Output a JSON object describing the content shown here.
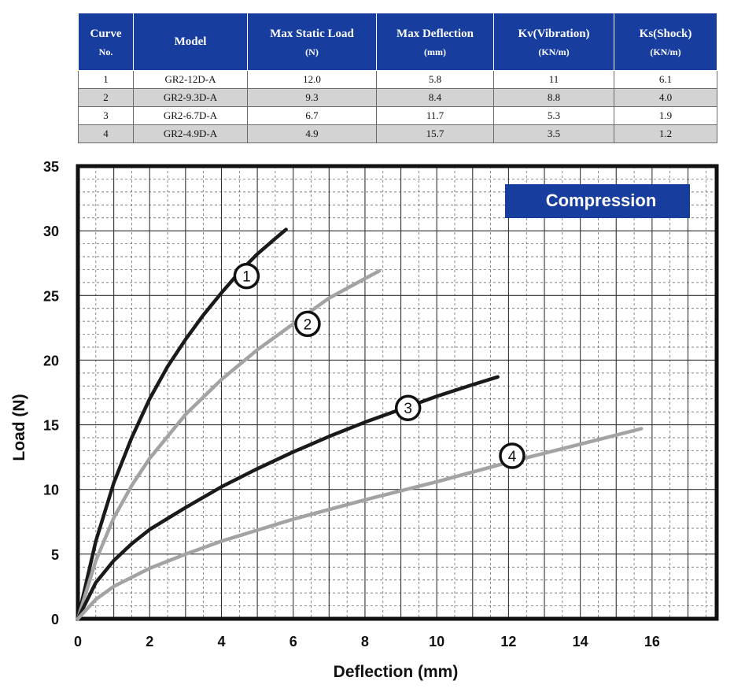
{
  "table": {
    "headers": [
      {
        "main": "Curve",
        "sub": "No."
      },
      {
        "main": "Model",
        "sub": ""
      },
      {
        "main": "Max Static Load",
        "sub": "(N)"
      },
      {
        "main": "Max Deflection",
        "sub": "(mm)"
      },
      {
        "main": "Kv(Vibration)",
        "sub": "(KN/m)"
      },
      {
        "main": "Ks(Shock)",
        "sub": "(KN/m)"
      }
    ],
    "rows": [
      [
        "1",
        "GR2-12D-A",
        "12.0",
        "5.8",
        "11",
        "6.1"
      ],
      [
        "2",
        "GR2-9.3D-A",
        "9.3",
        "8.4",
        "8.8",
        "4.0"
      ],
      [
        "3",
        "GR2-6.7D-A",
        "6.7",
        "11.7",
        "5.3",
        "1.9"
      ],
      [
        "4",
        "GR2-4.9D-A",
        "4.9",
        "15.7",
        "3.5",
        "1.2"
      ]
    ]
  },
  "chart_data": {
    "type": "line",
    "title": "",
    "label_box": "Compression",
    "xlabel": "Deflection (mm)",
    "ylabel": "Load (N)",
    "xlim": [
      0,
      17.8
    ],
    "ylim": [
      0,
      35
    ],
    "xticks": [
      0,
      2,
      4,
      6,
      8,
      10,
      12,
      14,
      16
    ],
    "yticks": [
      0,
      5,
      10,
      15,
      20,
      25,
      30,
      35
    ],
    "grid": true,
    "series": [
      {
        "name": "1",
        "color": "#1a1a1a",
        "marker": {
          "x": 4.7,
          "y": 26.5
        },
        "points": [
          [
            0,
            0
          ],
          [
            0.5,
            6
          ],
          [
            1,
            10.5
          ],
          [
            1.5,
            14
          ],
          [
            2,
            17
          ],
          [
            2.5,
            19.5
          ],
          [
            3,
            21.6
          ],
          [
            3.5,
            23.5
          ],
          [
            4,
            25.2
          ],
          [
            4.5,
            26.8
          ],
          [
            5,
            28.2
          ],
          [
            5.5,
            29.4
          ],
          [
            5.8,
            30.1
          ]
        ]
      },
      {
        "name": "2",
        "color": "#a3a3a3",
        "marker": {
          "x": 6.4,
          "y": 22.8
        },
        "points": [
          [
            0,
            0
          ],
          [
            0.5,
            4.5
          ],
          [
            1,
            7.8
          ],
          [
            1.5,
            10.3
          ],
          [
            2,
            12.4
          ],
          [
            3,
            15.8
          ],
          [
            4,
            18.5
          ],
          [
            5,
            20.8
          ],
          [
            6,
            22.8
          ],
          [
            7,
            24.8
          ],
          [
            8,
            26.3
          ],
          [
            8.4,
            26.9
          ]
        ]
      },
      {
        "name": "3",
        "color": "#1a1a1a",
        "marker": {
          "x": 9.2,
          "y": 16.3
        },
        "points": [
          [
            0,
            0
          ],
          [
            0.5,
            2.8
          ],
          [
            1,
            4.5
          ],
          [
            1.5,
            5.8
          ],
          [
            2,
            6.9
          ],
          [
            3,
            8.6
          ],
          [
            4,
            10.2
          ],
          [
            5,
            11.6
          ],
          [
            6,
            12.9
          ],
          [
            7,
            14.1
          ],
          [
            8,
            15.2
          ],
          [
            9,
            16.2
          ],
          [
            10,
            17.2
          ],
          [
            11,
            18.1
          ],
          [
            11.7,
            18.7
          ]
        ]
      },
      {
        "name": "4",
        "color": "#a3a3a3",
        "marker": {
          "x": 12.1,
          "y": 12.6
        },
        "points": [
          [
            0,
            0
          ],
          [
            0.5,
            1.5
          ],
          [
            1,
            2.5
          ],
          [
            2,
            3.9
          ],
          [
            3,
            5
          ],
          [
            4,
            6
          ],
          [
            6,
            7.7
          ],
          [
            8,
            9.2
          ],
          [
            10,
            10.6
          ],
          [
            12,
            12.1
          ],
          [
            14,
            13.5
          ],
          [
            15.7,
            14.7
          ]
        ]
      }
    ]
  },
  "colors": {
    "header_blue": "#173d9e",
    "label_box_blue": "#173d9e",
    "row_shade": "#d3d3d3",
    "grid_line": "#333333"
  }
}
